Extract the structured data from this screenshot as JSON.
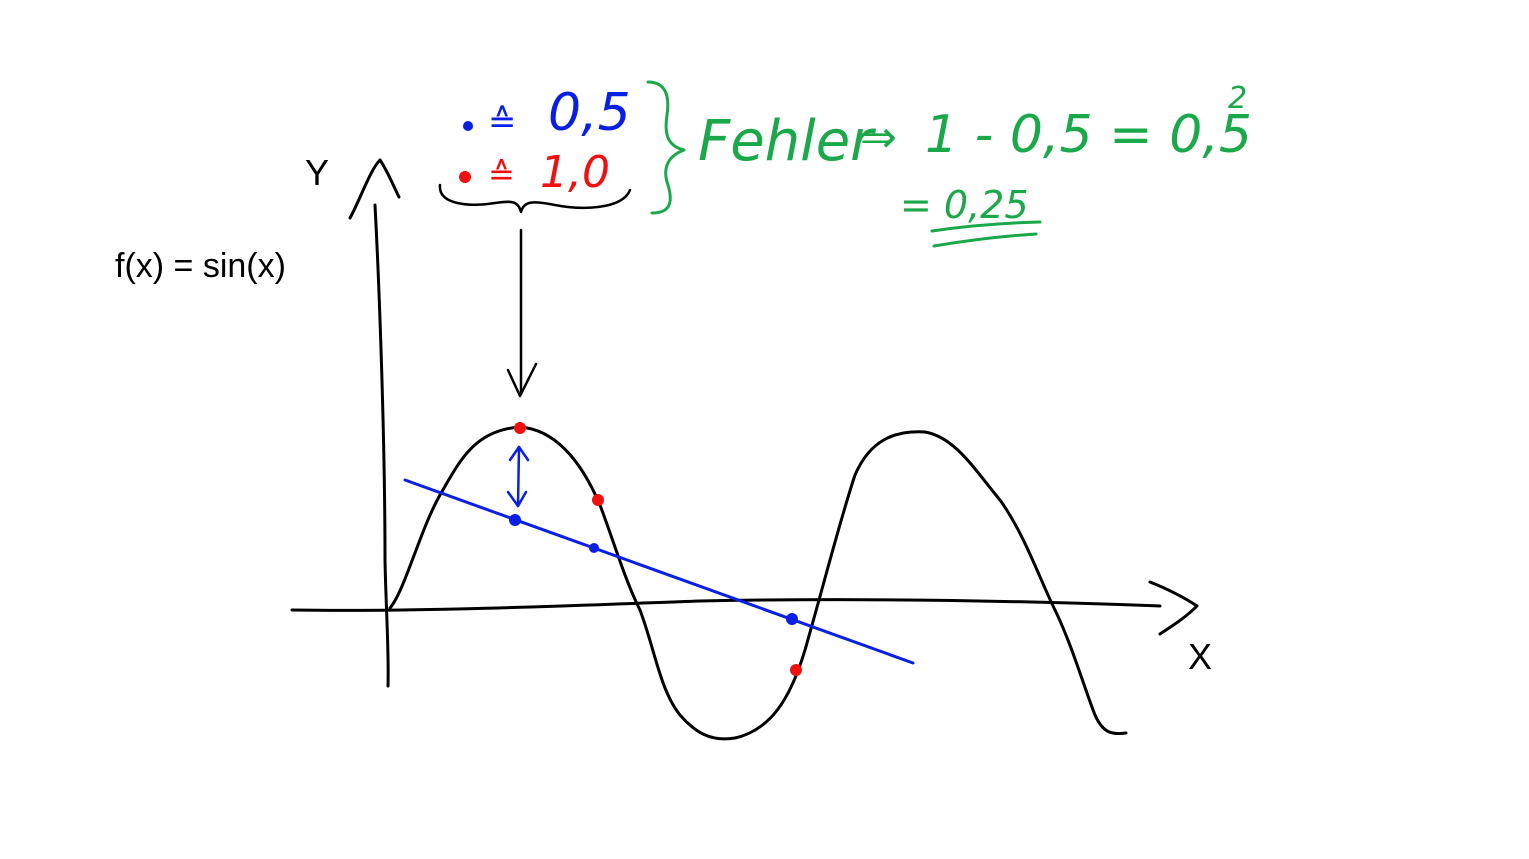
{
  "function_label": "f(x) = sin(x)",
  "axis": {
    "y_label": "Y",
    "x_label": "X"
  },
  "legend": {
    "blue_value": "0,5",
    "red_value": "1,0",
    "correspond_symbol": "≙"
  },
  "error_note": {
    "word": "Fehler",
    "arrow": "⇒",
    "expression": "1 - 0,5 = 0,5",
    "exponent": "2",
    "result": "= 0,25"
  },
  "colors": {
    "ink": "#000000",
    "blue": "#0a1fe6",
    "red": "#f01010",
    "green": "#1aa84a"
  }
}
